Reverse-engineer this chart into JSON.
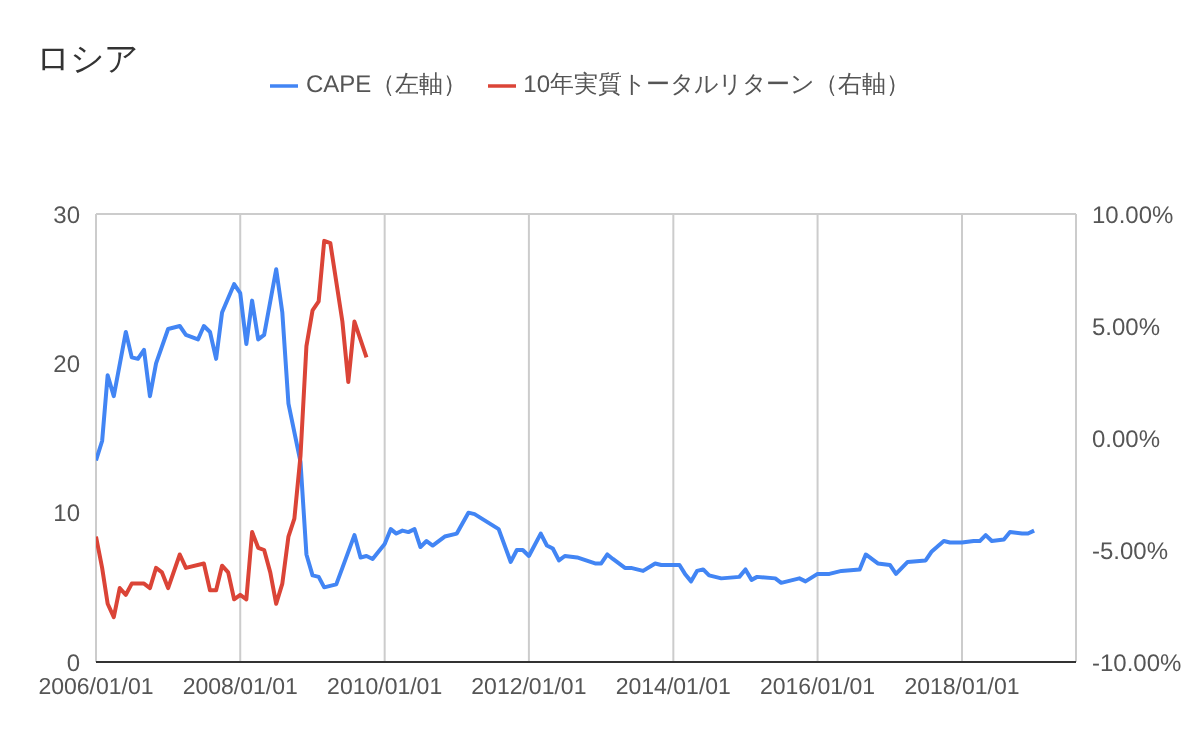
{
  "chart_data": {
    "type": "line",
    "title": "ロシア",
    "series": [
      {
        "name": "CAPE（左軸）",
        "color": "#4285f4",
        "x": [
          "2006-01",
          "2006-02",
          "2006-03",
          "2006-04",
          "2006-06",
          "2006-07",
          "2006-08",
          "2006-09",
          "2006-10",
          "2006-11",
          "2007-01",
          "2007-03",
          "2007-04",
          "2007-06",
          "2007-07",
          "2007-08",
          "2007-09",
          "2007-10",
          "2007-12",
          "2008-01",
          "2008-02",
          "2008-03",
          "2008-04",
          "2008-05",
          "2008-07",
          "2008-08",
          "2008-09",
          "2008-11",
          "2008-12",
          "2009-01",
          "2009-02",
          "2009-03",
          "2009-05",
          "2009-06",
          "2009-08",
          "2009-09",
          "2009-10",
          "2009-11",
          "2010-01",
          "2010-02",
          "2010-03",
          "2010-04",
          "2010-05",
          "2010-06",
          "2010-07",
          "2010-08",
          "2010-09",
          "2010-11",
          "2011-01",
          "2011-03",
          "2011-04",
          "2011-06",
          "2011-08",
          "2011-10",
          "2011-11",
          "2011-12",
          "2012-01",
          "2012-03",
          "2012-04",
          "2012-05",
          "2012-06",
          "2012-07",
          "2012-09",
          "2012-12",
          "2013-01",
          "2013-02",
          "2013-03",
          "2013-05",
          "2013-06",
          "2013-08",
          "2013-10",
          "2013-11",
          "2014-02",
          "2014-03",
          "2014-04",
          "2014-05",
          "2014-06",
          "2014-07",
          "2014-09",
          "2014-12",
          "2015-01",
          "2015-02",
          "2015-03",
          "2015-06",
          "2015-07",
          "2015-10",
          "2015-11",
          "2016-01",
          "2016-03",
          "2016-05",
          "2016-08",
          "2016-09",
          "2016-11",
          "2017-01",
          "2017-02",
          "2017-04",
          "2017-07",
          "2017-08",
          "2017-10",
          "2017-11",
          "2018-01",
          "2018-03",
          "2018-04",
          "2018-05",
          "2018-06",
          "2018-08",
          "2018-09",
          "2018-11",
          "2018-12",
          "2019-01"
        ],
        "values": [
          13.5,
          14.8,
          19.2,
          17.8,
          22.1,
          20.4,
          20.3,
          20.9,
          17.8,
          20.0,
          22.3,
          22.5,
          21.9,
          21.6,
          22.5,
          22.1,
          20.3,
          23.4,
          25.3,
          24.7,
          21.3,
          24.2,
          21.6,
          21.9,
          26.3,
          23.4,
          17.3,
          13.4,
          7.2,
          5.8,
          5.7,
          5.0,
          5.2,
          6.3,
          8.5,
          7.0,
          7.1,
          6.9,
          7.9,
          8.9,
          8.6,
          8.8,
          8.7,
          8.9,
          7.7,
          8.1,
          7.8,
          8.4,
          8.6,
          10.0,
          9.9,
          9.4,
          8.9,
          6.7,
          7.5,
          7.5,
          7.1,
          8.6,
          7.8,
          7.6,
          6.8,
          7.1,
          7.0,
          6.6,
          6.6,
          7.2,
          6.9,
          6.3,
          6.3,
          6.1,
          6.6,
          6.5,
          6.5,
          5.9,
          5.4,
          6.1,
          6.2,
          5.8,
          5.6,
          5.7,
          6.2,
          5.5,
          5.7,
          5.6,
          5.3,
          5.6,
          5.4,
          5.9,
          5.9,
          6.1,
          6.2,
          7.2,
          6.6,
          6.5,
          5.9,
          6.7,
          6.8,
          7.4,
          8.1,
          8.0,
          8.0,
          8.1,
          8.1,
          8.5,
          8.1,
          8.2,
          8.7,
          8.6,
          8.6,
          8.8
        ]
      },
      {
        "name": "10年実質トータルリターン（右軸）",
        "color": "#db4437",
        "axis": "y2",
        "x": [
          "2006-01",
          "2006-02",
          "2006-03",
          "2006-04",
          "2006-05",
          "2006-06",
          "2006-07",
          "2006-09",
          "2006-10",
          "2006-11",
          "2006-12",
          "2007-01",
          "2007-03",
          "2007-04",
          "2007-07",
          "2007-08",
          "2007-09",
          "2007-10",
          "2007-11",
          "2007-12",
          "2008-01",
          "2008-02",
          "2008-03",
          "2008-04",
          "2008-05",
          "2008-06",
          "2008-07",
          "2008-08",
          "2008-09",
          "2008-10",
          "2008-11",
          "2008-12",
          "2009-01",
          "2009-02",
          "2009-03",
          "2009-04",
          "2009-06",
          "2009-07",
          "2009-08",
          "2009-10"
        ],
        "values": [
          -4.4,
          -5.8,
          -7.4,
          -8.0,
          -6.7,
          -7.0,
          -6.5,
          -6.5,
          -6.7,
          -5.8,
          -6.0,
          -6.7,
          -5.2,
          -5.8,
          -5.6,
          -6.8,
          -6.8,
          -5.7,
          -6.0,
          -7.2,
          -7.0,
          -7.2,
          -4.2,
          -4.9,
          -5.0,
          -6.0,
          -7.4,
          -6.5,
          -4.4,
          -3.6,
          -0.8,
          4.1,
          5.7,
          6.1,
          8.8,
          8.7,
          5.2,
          2.5,
          5.2,
          3.6
        ]
      }
    ],
    "xlim": [
      "2006-01-01",
      "2019-08-01"
    ],
    "xticks": [
      {
        "value": "2006-01-01",
        "label": "2006/01/01"
      },
      {
        "value": "2008-01-01",
        "label": "2008/01/01"
      },
      {
        "value": "2010-01-01",
        "label": "2010/01/01"
      },
      {
        "value": "2012-01-01",
        "label": "2012/01/01"
      },
      {
        "value": "2014-01-01",
        "label": "2014/01/01"
      },
      {
        "value": "2016-01-01",
        "label": "2016/01/01"
      },
      {
        "value": "2018-01-01",
        "label": "2018/01/01"
      }
    ],
    "ylim": [
      0,
      30
    ],
    "yticks": [
      0,
      10,
      20,
      30
    ],
    "y2lim": [
      -10,
      10
    ],
    "y2ticks": [
      {
        "value": -10,
        "label": "-10.00%"
      },
      {
        "value": -5,
        "label": "-5.00%"
      },
      {
        "value": 0,
        "label": "0.00%"
      },
      {
        "value": 5,
        "label": "5.00%"
      },
      {
        "value": 10,
        "label": "10.00%"
      }
    ],
    "grid": true,
    "legend": "top",
    "line_style": "solid"
  }
}
